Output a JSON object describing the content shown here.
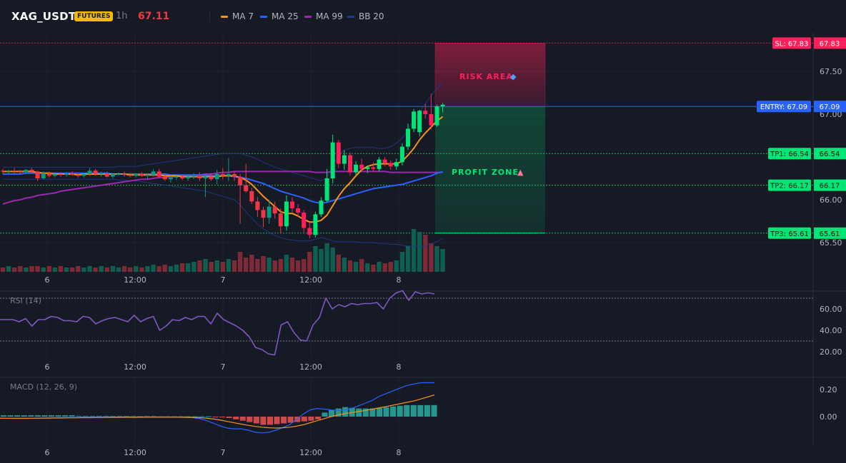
{
  "header": {
    "symbol": "XAG_USDT",
    "badge": "FUTURES",
    "timeframe": "1h",
    "last_price": "67.11",
    "legend": [
      {
        "label": "MA 7",
        "color": "#f7931a"
      },
      {
        "label": "MA 25",
        "color": "#2962ff"
      },
      {
        "label": "MA 99",
        "color": "#9c27b0"
      },
      {
        "label": "BB 20",
        "color": "#1e3a8a"
      }
    ]
  },
  "colors": {
    "up": "#089981",
    "down": "#f23645",
    "bright_up": "#00e676",
    "bright_down": "#ff1f5a",
    "ma7": "#f7931a",
    "ma25": "#2962ff",
    "ma99": "#9c27b0",
    "bb": "#1e3a8a",
    "rsi": "#7e57c2",
    "macd": "#2962ff",
    "signal": "#f7931a",
    "sl": "#ff1f5a",
    "entry": "#2962ff",
    "tp": "#00e676"
  },
  "zones": {
    "risk_label": "RISK AREA",
    "profit_label": "PROFIT ZONE"
  },
  "chart_data": [
    {
      "type": "candlestick",
      "title": "XAG_USDT",
      "xticks": [
        "6",
        "12:00",
        "7",
        "12:00",
        "8"
      ],
      "yticks": [
        "67.50",
        "67.00",
        "66.00",
        "65.50"
      ],
      "ylim": [
        65.2,
        67.9
      ],
      "levels": [
        {
          "label": "SL: 67.83",
          "value": 67.83,
          "axis": "67.83"
        },
        {
          "label": "ENTRY: 67.09",
          "value": 67.09,
          "axis": "67.09"
        },
        {
          "label": "TP1: 66.54",
          "value": 66.54,
          "axis": "66.54"
        },
        {
          "label": "TP2: 66.17",
          "value": 66.17,
          "axis": "66.17"
        },
        {
          "label": "TP3: 65.61",
          "value": 65.61,
          "axis": "65.61"
        }
      ],
      "candles": [
        [
          66.34,
          66.36,
          66.3,
          66.33
        ],
        [
          66.33,
          66.35,
          66.3,
          66.34
        ],
        [
          66.34,
          66.37,
          66.31,
          66.33
        ],
        [
          66.33,
          66.35,
          66.3,
          66.32
        ],
        [
          66.32,
          66.36,
          66.3,
          66.35
        ],
        [
          66.35,
          66.37,
          66.31,
          66.33
        ],
        [
          66.33,
          66.34,
          66.22,
          66.25
        ],
        [
          66.25,
          66.33,
          66.24,
          66.31
        ],
        [
          66.31,
          66.33,
          66.26,
          66.28
        ],
        [
          66.28,
          66.32,
          66.26,
          66.3
        ],
        [
          66.3,
          66.32,
          66.27,
          66.29
        ],
        [
          66.29,
          66.32,
          66.27,
          66.31
        ],
        [
          66.31,
          66.33,
          66.28,
          66.29
        ],
        [
          66.29,
          66.31,
          66.26,
          66.28
        ],
        [
          66.28,
          66.31,
          66.26,
          66.3
        ],
        [
          66.3,
          66.37,
          66.28,
          66.34
        ],
        [
          66.34,
          66.36,
          66.28,
          66.3
        ],
        [
          66.3,
          66.33,
          66.27,
          66.31
        ],
        [
          66.31,
          66.33,
          66.26,
          66.27
        ],
        [
          66.27,
          66.31,
          66.25,
          66.3
        ],
        [
          66.3,
          66.32,
          66.28,
          66.3
        ],
        [
          66.3,
          66.33,
          66.27,
          66.29
        ],
        [
          66.29,
          66.31,
          66.26,
          66.28
        ],
        [
          66.28,
          66.31,
          66.26,
          66.3
        ],
        [
          66.3,
          66.32,
          66.27,
          66.28
        ],
        [
          66.28,
          66.31,
          66.24,
          66.29
        ],
        [
          66.29,
          66.36,
          66.27,
          66.33
        ],
        [
          66.33,
          66.36,
          66.25,
          66.27
        ],
        [
          66.27,
          66.3,
          66.22,
          66.24
        ],
        [
          66.24,
          66.28,
          66.2,
          66.26
        ],
        [
          66.26,
          66.3,
          66.23,
          66.27
        ],
        [
          66.27,
          66.29,
          66.23,
          66.25
        ],
        [
          66.25,
          66.29,
          66.22,
          66.27
        ],
        [
          66.27,
          66.31,
          66.24,
          66.28
        ],
        [
          66.28,
          66.32,
          66.22,
          66.25
        ],
        [
          66.25,
          66.29,
          66.03,
          66.27
        ],
        [
          66.27,
          66.31,
          66.22,
          66.24
        ],
        [
          66.24,
          66.35,
          66.18,
          66.3
        ],
        [
          66.3,
          66.37,
          66.24,
          66.28
        ],
        [
          66.28,
          66.49,
          66.22,
          66.3
        ],
        [
          66.3,
          66.33,
          66.22,
          66.27
        ],
        [
          66.27,
          66.3,
          65.72,
          66.17
        ],
        [
          66.17,
          66.42,
          66.08,
          66.1
        ],
        [
          66.1,
          66.14,
          65.95,
          65.98
        ],
        [
          65.98,
          66.03,
          65.8,
          65.88
        ],
        [
          65.88,
          65.92,
          65.68,
          65.79
        ],
        [
          65.79,
          66.0,
          65.72,
          65.92
        ],
        [
          65.92,
          65.98,
          65.78,
          65.84
        ],
        [
          65.84,
          65.9,
          65.61,
          65.69
        ],
        [
          65.69,
          66.05,
          65.64,
          65.98
        ],
        [
          65.98,
          66.03,
          65.85,
          65.9
        ],
        [
          65.9,
          65.95,
          65.8,
          65.85
        ],
        [
          65.85,
          65.88,
          65.62,
          65.67
        ],
        [
          65.67,
          65.74,
          65.55,
          65.59
        ],
        [
          65.59,
          65.86,
          65.56,
          65.83
        ],
        [
          65.83,
          66.03,
          65.8,
          65.99
        ],
        [
          65.99,
          66.36,
          65.97,
          66.25
        ],
        [
          66.25,
          66.76,
          66.19,
          66.67
        ],
        [
          66.67,
          66.7,
          66.37,
          66.42
        ],
        [
          66.42,
          66.58,
          66.35,
          66.52
        ],
        [
          66.52,
          66.55,
          66.28,
          66.32
        ],
        [
          66.32,
          66.45,
          66.29,
          66.41
        ],
        [
          66.41,
          66.48,
          66.33,
          66.36
        ],
        [
          66.36,
          66.4,
          66.31,
          66.38
        ],
        [
          66.38,
          66.44,
          66.32,
          66.36
        ],
        [
          66.36,
          66.5,
          66.33,
          66.47
        ],
        [
          66.47,
          66.5,
          66.39,
          66.43
        ],
        [
          66.43,
          66.46,
          66.35,
          66.39
        ],
        [
          66.39,
          66.48,
          66.35,
          66.44
        ],
        [
          66.44,
          66.66,
          66.4,
          66.62
        ],
        [
          66.62,
          66.89,
          66.58,
          66.83
        ],
        [
          66.83,
          67.06,
          66.79,
          67.03
        ],
        [
          66.79,
          67.05,
          66.74,
          67.04
        ],
        [
          67.04,
          67.12,
          66.95,
          67.0
        ],
        [
          67.0,
          67.24,
          66.82,
          66.87
        ],
        [
          66.87,
          67.11,
          66.85,
          67.09
        ],
        [
          67.09,
          67.13,
          67.02,
          67.11
        ]
      ],
      "volume": [
        3,
        4,
        3,
        4,
        3,
        4,
        4,
        3,
        4,
        3,
        4,
        3,
        3,
        4,
        3,
        4,
        3,
        4,
        3,
        4,
        3,
        4,
        3,
        4,
        3,
        4,
        5,
        4,
        5,
        4,
        5,
        6,
        6,
        7,
        8,
        9,
        7,
        8,
        7,
        9,
        8,
        14,
        10,
        12,
        9,
        11,
        10,
        8,
        9,
        12,
        10,
        8,
        9,
        14,
        18,
        16,
        20,
        17,
        12,
        10,
        8,
        7,
        9,
        6,
        5,
        7,
        6,
        7,
        8,
        14,
        18,
        30,
        28,
        26,
        20,
        18,
        16
      ],
      "ma7": [
        66.33,
        66.33,
        66.33,
        66.33,
        66.33,
        66.33,
        66.32,
        66.31,
        66.31,
        66.3,
        66.3,
        66.3,
        66.3,
        66.29,
        66.3,
        66.3,
        66.3,
        66.3,
        66.3,
        66.3,
        66.3,
        66.3,
        66.29,
        66.29,
        66.29,
        66.29,
        66.29,
        66.29,
        66.28,
        66.28,
        66.28,
        66.27,
        66.27,
        66.27,
        66.27,
        66.27,
        66.27,
        66.27,
        66.28,
        66.28,
        66.28,
        66.26,
        66.23,
        66.18,
        66.11,
        66.04,
        65.98,
        65.92,
        65.86,
        65.84,
        65.84,
        65.81,
        65.77,
        65.74,
        65.74,
        65.76,
        65.82,
        65.93,
        66.04,
        66.13,
        66.2,
        66.28,
        66.35,
        66.39,
        66.41,
        66.42,
        66.42,
        66.42,
        66.42,
        66.45,
        66.52,
        66.6,
        66.7,
        66.78,
        66.85,
        66.92,
        66.97
      ],
      "ma25": [
        66.3,
        66.3,
        66.3,
        66.3,
        66.31,
        66.31,
        66.31,
        66.31,
        66.31,
        66.31,
        66.31,
        66.31,
        66.31,
        66.31,
        66.31,
        66.31,
        66.31,
        66.31,
        66.31,
        66.3,
        66.3,
        66.3,
        66.3,
        66.3,
        66.3,
        66.3,
        66.3,
        66.3,
        66.3,
        66.29,
        66.29,
        66.29,
        66.29,
        66.29,
        66.29,
        66.29,
        66.28,
        66.28,
        66.28,
        66.28,
        66.27,
        66.26,
        66.25,
        66.23,
        66.21,
        66.19,
        66.16,
        66.13,
        66.1,
        66.08,
        66.06,
        66.04,
        66.02,
        65.99,
        65.97,
        65.96,
        65.97,
        65.99,
        66.01,
        66.03,
        66.05,
        66.07,
        66.09,
        66.11,
        66.13,
        66.14,
        66.15,
        66.16,
        66.17,
        66.18,
        66.2,
        66.22,
        66.24,
        66.26,
        66.28,
        66.31,
        66.33
      ],
      "ma99": [
        65.95,
        65.97,
        65.99,
        66.0,
        66.02,
        66.03,
        66.05,
        66.06,
        66.07,
        66.08,
        66.1,
        66.11,
        66.12,
        66.13,
        66.14,
        66.15,
        66.16,
        66.17,
        66.18,
        66.19,
        66.2,
        66.21,
        66.22,
        66.23,
        66.24,
        66.24,
        66.25,
        66.26,
        66.26,
        66.27,
        66.27,
        66.28,
        66.28,
        66.29,
        66.29,
        66.3,
        66.3,
        66.31,
        66.32,
        66.32,
        66.33,
        66.33,
        66.33,
        66.33,
        66.33,
        66.33,
        66.33,
        66.33,
        66.33,
        66.33,
        66.33,
        66.33,
        66.33,
        66.33,
        66.32,
        66.32,
        66.32,
        66.33,
        66.33,
        66.33,
        66.33,
        66.33,
        66.33,
        66.33,
        66.33,
        66.33,
        66.33,
        66.32,
        66.32,
        66.32,
        66.32,
        66.32,
        66.32,
        66.32,
        66.32,
        66.32,
        66.32
      ],
      "bb_upper": [
        66.38,
        66.38,
        66.38,
        66.38,
        66.38,
        66.38,
        66.38,
        66.38,
        66.38,
        66.38,
        66.38,
        66.38,
        66.38,
        66.38,
        66.38,
        66.38,
        66.38,
        66.38,
        66.38,
        66.38,
        66.39,
        66.39,
        66.39,
        66.39,
        66.4,
        66.41,
        66.42,
        66.43,
        66.44,
        66.45,
        66.46,
        66.47,
        66.48,
        66.49,
        66.5,
        66.51,
        66.52,
        66.53,
        66.54,
        66.54,
        66.54,
        66.54,
        66.52,
        66.5,
        66.47,
        66.44,
        66.41,
        66.38,
        66.36,
        66.34,
        66.32,
        66.3,
        66.28,
        66.26,
        66.24,
        66.22,
        66.26,
        66.4,
        66.52,
        66.58,
        66.6,
        66.61,
        66.61,
        66.61,
        66.61,
        66.6,
        66.6,
        66.62,
        66.66,
        66.72,
        66.82,
        66.92,
        67.02,
        67.12,
        67.22,
        67.3,
        67.38
      ],
      "bb_lower": [
        66.24,
        66.24,
        66.24,
        66.24,
        66.24,
        66.24,
        66.24,
        66.24,
        66.24,
        66.24,
        66.24,
        66.24,
        66.24,
        66.24,
        66.24,
        66.24,
        66.24,
        66.24,
        66.24,
        66.24,
        66.23,
        66.23,
        66.22,
        66.22,
        66.21,
        66.2,
        66.19,
        66.18,
        66.17,
        66.16,
        66.15,
        66.14,
        66.13,
        66.12,
        66.11,
        66.1,
        66.08,
        66.06,
        66.04,
        66.02,
        66.0,
        65.94,
        65.86,
        65.79,
        65.72,
        65.66,
        65.62,
        65.58,
        65.56,
        65.54,
        65.53,
        65.52,
        65.52,
        65.52,
        65.54,
        65.56,
        65.54,
        65.52,
        65.51,
        65.51,
        65.51,
        65.51,
        65.5,
        65.5,
        65.5,
        65.49,
        65.49,
        65.48,
        65.48,
        65.47,
        65.46,
        65.46,
        65.45,
        65.46,
        65.48,
        65.51,
        65.55
      ]
    },
    {
      "type": "line",
      "title": "RSI (14)",
      "xticks": [
        "6",
        "12:00",
        "7",
        "12:00",
        "8"
      ],
      "yticks": [
        "60.00",
        "40.00",
        "20.00"
      ],
      "ylim": [
        10,
        75
      ],
      "levels": [
        70,
        30
      ],
      "values": [
        50,
        50,
        50,
        48,
        51,
        44,
        50,
        50,
        53,
        52,
        49,
        49,
        48,
        53,
        52,
        46,
        49,
        51,
        52,
        50,
        48,
        54,
        48,
        51,
        53,
        40,
        44,
        50,
        49,
        52,
        50,
        53,
        53,
        46,
        56,
        50,
        47,
        44,
        40,
        34,
        24,
        22,
        18,
        17,
        45,
        48,
        38,
        31,
        30,
        45,
        52,
        70,
        60,
        64,
        62,
        65,
        64,
        65,
        65,
        66,
        60,
        70,
        75,
        77,
        68,
        76,
        74,
        75,
        74
      ],
      "points_x_offset": 0
    },
    {
      "type": "bar+line",
      "title": "MACD (12, 26, 9)",
      "xticks": [
        "6",
        "12:00",
        "7",
        "12:00",
        "8"
      ],
      "yticks": [
        "0.20",
        "0.00"
      ],
      "ylim": [
        -0.18,
        0.27
      ],
      "histogram": [
        0.01,
        0.01,
        0.01,
        0.01,
        0.01,
        0.01,
        0.01,
        0.01,
        0.01,
        0.01,
        0.01,
        0.005,
        0.005,
        0.005,
        0.005,
        0.005,
        0.004,
        0.004,
        0.004,
        0.003,
        0.003,
        0.003,
        0.003,
        0.002,
        0.002,
        0.002,
        0.002,
        0.002,
        0.002,
        0.002,
        0.002,
        -0.003,
        -0.005,
        -0.01,
        -0.02,
        -0.03,
        -0.04,
        -0.05,
        -0.06,
        -0.06,
        -0.055,
        -0.05,
        -0.045,
        -0.04,
        -0.035,
        -0.03,
        -0.02,
        0.03,
        0.05,
        0.06,
        0.07,
        0.065,
        0.06,
        0.06,
        0.06,
        0.065,
        0.07,
        0.075,
        0.08,
        0.085,
        0.085,
        0.085,
        0.085,
        0.085
      ],
      "macd": [
        -0.01,
        -0.012,
        -0.013,
        -0.014,
        -0.013,
        -0.012,
        -0.011,
        -0.01,
        -0.009,
        -0.008,
        -0.007,
        -0.007,
        -0.006,
        -0.006,
        -0.005,
        -0.005,
        -0.004,
        -0.004,
        -0.004,
        -0.004,
        -0.003,
        -0.003,
        -0.003,
        -0.003,
        -0.003,
        -0.003,
        -0.003,
        -0.005,
        -0.008,
        -0.015,
        -0.03,
        -0.05,
        -0.07,
        -0.085,
        -0.09,
        -0.09,
        -0.1,
        -0.115,
        -0.12,
        -0.115,
        -0.1,
        -0.08,
        -0.06,
        -0.02,
        0.02,
        0.05,
        0.06,
        0.055,
        0.05,
        0.045,
        0.05,
        0.06,
        0.08,
        0.1,
        0.12,
        0.15,
        0.17,
        0.19,
        0.21,
        0.23,
        0.24,
        0.25,
        0.25,
        0.25
      ],
      "signal": [
        -0.012,
        -0.012,
        -0.012,
        -0.012,
        -0.012,
        -0.012,
        -0.011,
        -0.011,
        -0.01,
        -0.01,
        -0.009,
        -0.009,
        -0.008,
        -0.008,
        -0.007,
        -0.007,
        -0.006,
        -0.006,
        -0.005,
        -0.005,
        -0.005,
        -0.004,
        -0.004,
        -0.004,
        -0.004,
        -0.004,
        -0.004,
        -0.005,
        -0.006,
        -0.008,
        -0.012,
        -0.018,
        -0.026,
        -0.036,
        -0.046,
        -0.055,
        -0.064,
        -0.072,
        -0.078,
        -0.082,
        -0.084,
        -0.082,
        -0.078,
        -0.07,
        -0.06,
        -0.045,
        -0.03,
        -0.015,
        0.0,
        0.012,
        0.022,
        0.03,
        0.038,
        0.046,
        0.055,
        0.065,
        0.075,
        0.085,
        0.095,
        0.105,
        0.115,
        0.13,
        0.145,
        0.16
      ]
    }
  ]
}
